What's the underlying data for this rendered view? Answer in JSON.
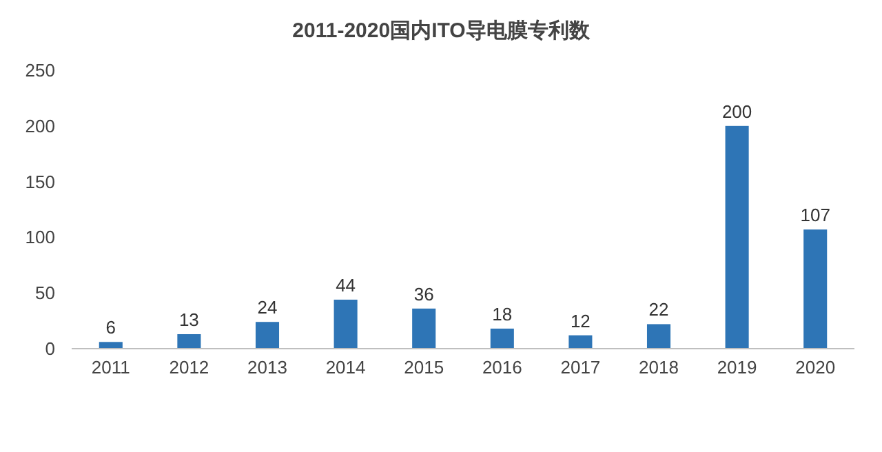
{
  "chart_data": {
    "type": "bar",
    "title": "2011-2020国内ITO导电膜专利数",
    "categories": [
      "2011",
      "2012",
      "2013",
      "2014",
      "2015",
      "2016",
      "2017",
      "2018",
      "2019",
      "2020"
    ],
    "values": [
      6,
      13,
      24,
      44,
      36,
      18,
      12,
      22,
      200,
      107
    ],
    "color": "#2e75b6",
    "ylim": [
      0,
      250
    ],
    "yticks": [
      0,
      50,
      100,
      150,
      200,
      250
    ],
    "data_labels": true,
    "grid": false
  }
}
